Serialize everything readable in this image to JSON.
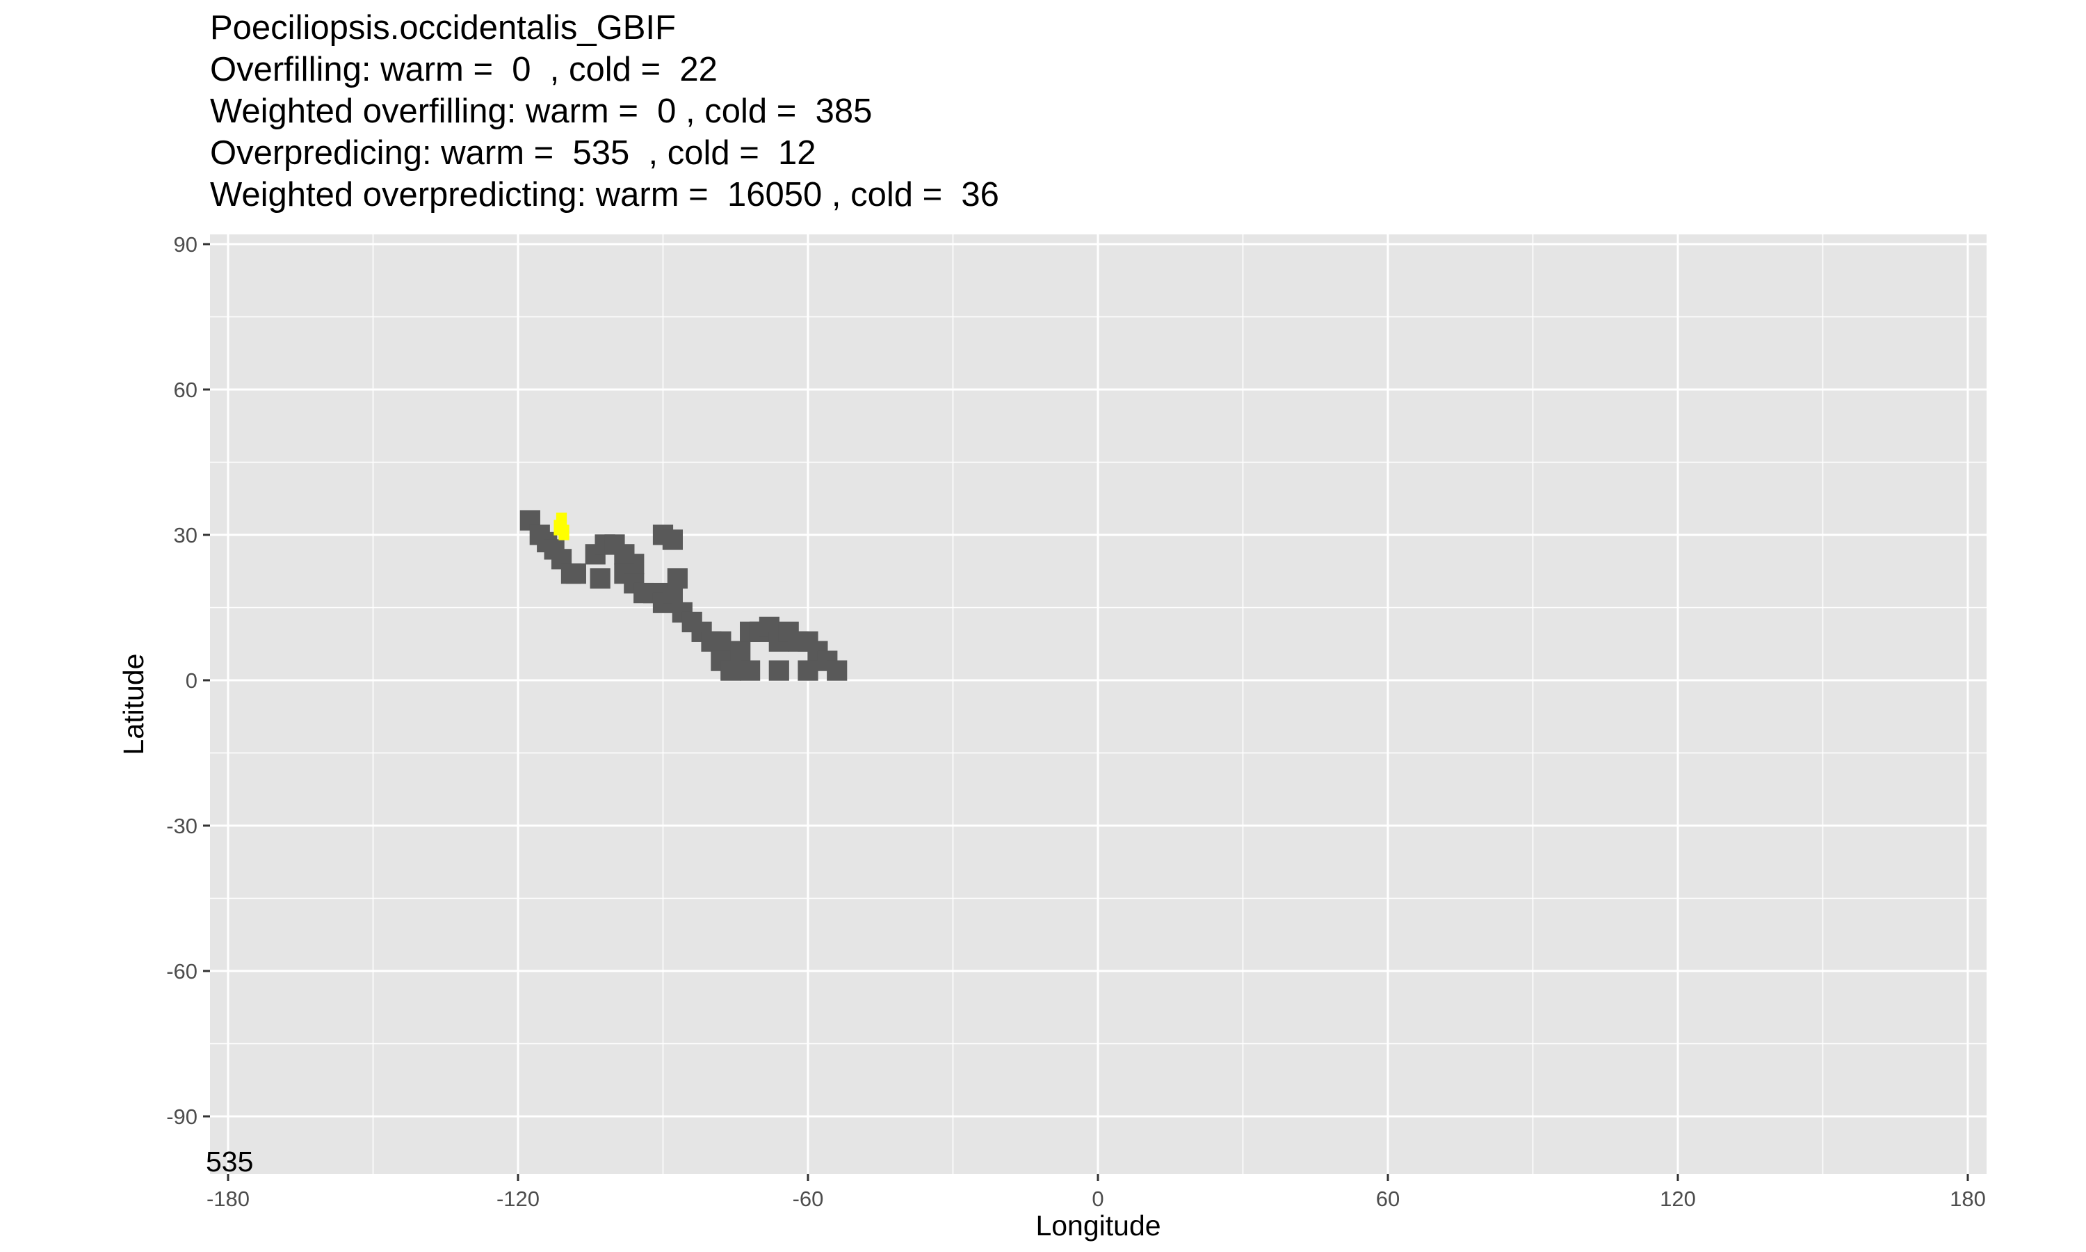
{
  "title_lines": [
    "Poeciliopsis.occidentalis_GBIF",
    "Overfilling: warm =  0  , cold =  22",
    "Weighted overfilling: warm =  0 , cold =  385",
    "Overpredicing: warm =  535  , cold =  12",
    "Weighted overpredicting: warm =  16050 , cold =  36"
  ],
  "corner_label": "535",
  "colors": {
    "panel": "#e5e5e5",
    "grid": "#ffffff",
    "land": "#595959",
    "occurrence": "#ffff00",
    "tick_text": "#4d4d4d"
  },
  "chart_data": {
    "type": "heatmap",
    "title": "Poeciliopsis.occidentalis_GBIF",
    "xlabel": "Longitude",
    "ylabel": "Latitude",
    "xlim": [
      -180,
      180
    ],
    "ylim": [
      -100,
      90
    ],
    "x_ticks": [
      -180,
      -120,
      -60,
      0,
      60,
      120,
      180
    ],
    "y_ticks": [
      -90,
      -60,
      -30,
      0,
      30,
      60,
      90
    ],
    "x_tick_labels": [
      "-180",
      "-120",
      "-60",
      "0",
      "60",
      "120",
      "180"
    ],
    "y_tick_labels": [
      "-90",
      "-60",
      "-30",
      "0",
      "30",
      "60",
      "90"
    ],
    "grid": true,
    "series": [
      {
        "role": "predicted-range",
        "cells": [
          [
            -117.5,
            33
          ],
          [
            -115.5,
            30
          ],
          [
            -114,
            28.5
          ],
          [
            -112.5,
            27
          ],
          [
            -111,
            25
          ],
          [
            -109,
            22
          ],
          [
            -108,
            22
          ],
          [
            -104,
            26
          ],
          [
            -102,
            28
          ],
          [
            -100,
            28
          ],
          [
            -98,
            26
          ],
          [
            -96,
            24
          ],
          [
            -98,
            22
          ],
          [
            -96,
            20
          ],
          [
            -94,
            18
          ],
          [
            -92,
            18
          ],
          [
            -90,
            16
          ],
          [
            -88,
            18
          ],
          [
            -87,
            21
          ],
          [
            -86,
            14
          ],
          [
            -84,
            12
          ],
          [
            -82,
            10
          ],
          [
            -80,
            8
          ],
          [
            -78,
            8
          ],
          [
            -78,
            4
          ],
          [
            -76,
            2
          ],
          [
            -74,
            6
          ],
          [
            -72,
            10
          ],
          [
            -70,
            10
          ],
          [
            -68,
            11
          ],
          [
            -66,
            8
          ],
          [
            -64,
            10
          ],
          [
            -62,
            8
          ],
          [
            -60,
            8
          ],
          [
            -58,
            6
          ],
          [
            -56,
            4
          ],
          [
            -54,
            2
          ],
          [
            -60,
            2
          ],
          [
            -66,
            2
          ],
          [
            -72,
            2
          ],
          [
            -90,
            30
          ],
          [
            -88,
            29
          ],
          [
            -103,
            21
          ]
        ]
      },
      {
        "role": "occurrence",
        "cells": [
          [
            -111.5,
            31.5
          ],
          [
            -110.5,
            30.5
          ],
          [
            -111,
            33
          ]
        ]
      }
    ]
  }
}
